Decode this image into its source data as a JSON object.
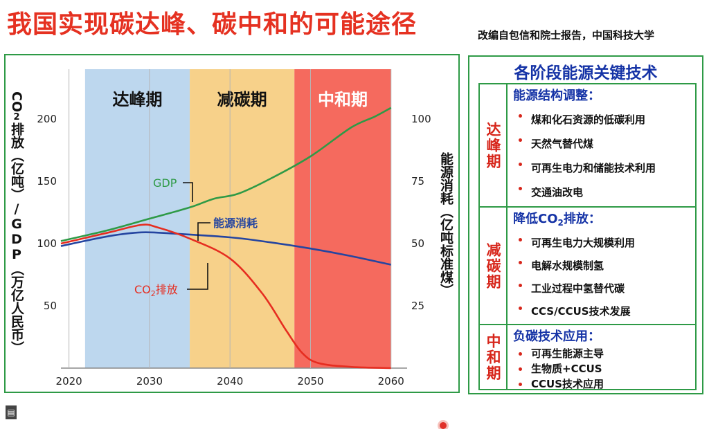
{
  "header": {
    "title": "我国实现碳达峰、碳中和的可能途径",
    "source": "改编自包信和院士报告，中国科技大学"
  },
  "chart_data": {
    "type": "line",
    "x_ticks": [
      2020,
      2030,
      2040,
      2050,
      2060
    ],
    "xlim": [
      2019,
      2062
    ],
    "left_axis": {
      "label_lines": [
        "CO",
        "2",
        "排放（亿吨）/GDP（万亿人民币）"
      ],
      "ylim": [
        0,
        240
      ],
      "ticks": [
        50,
        100,
        150,
        200
      ]
    },
    "right_axis": {
      "label": "能源消耗（亿吨标准煤）",
      "ylim": [
        0,
        120
      ],
      "ticks": [
        25,
        50,
        75,
        100
      ]
    },
    "phases": [
      {
        "name": "达峰期",
        "start": 2022,
        "end": 2035,
        "color": "#bdd7ee"
      },
      {
        "name": "减碳期",
        "start": 2035,
        "end": 2048,
        "color": "#f7d18a"
      },
      {
        "name": "中和期",
        "start": 2048,
        "end": 2060,
        "color": "#f56a5e"
      }
    ],
    "series": [
      {
        "name": "GDP",
        "label": "GDP",
        "axis": "left",
        "color": "#2e9a46",
        "x": [
          2019,
          2025,
          2030,
          2035,
          2038,
          2041,
          2045,
          2050,
          2055,
          2058,
          2060
        ],
        "values": [
          102,
          111,
          120,
          129,
          136,
          140,
          152,
          170,
          193,
          202,
          209
        ]
      },
      {
        "name": "能源消耗",
        "label": "能源消耗",
        "axis": "right",
        "color": "#2545a0",
        "x": [
          2019,
          2025,
          2029,
          2033,
          2040,
          2045,
          2050,
          2055,
          2060
        ],
        "values": [
          49,
          53,
          54.5,
          54,
          52.5,
          50.5,
          48,
          45,
          41.5
        ]
      },
      {
        "name": "CO2排放",
        "label_main": "CO",
        "label_sub": "2",
        "label_post": "排放",
        "axis": "left",
        "color": "#e62d20",
        "x": [
          2019,
          2025,
          2029,
          2031,
          2035,
          2040,
          2044,
          2047,
          2049,
          2051,
          2055,
          2060
        ],
        "values": [
          100,
          109,
          115,
          113,
          104,
          88,
          60,
          30,
          12,
          4,
          1,
          0
        ]
      }
    ]
  },
  "panel": {
    "title": "各阶段能源关键技术",
    "stages": [
      {
        "label": "达峰期",
        "heading_pre": "能源结构调整：",
        "heading_sub": "",
        "heading_post": "",
        "items": [
          "煤和化石资源的低碳利用",
          "天然气替代煤",
          "可再生电力和储能技术利用",
          "交通油改电"
        ]
      },
      {
        "label": "减碳期",
        "heading_pre": "降低CO",
        "heading_sub": "2",
        "heading_post": "排放：",
        "items": [
          "可再生电力大规模利用",
          "电解水规模制氢",
          "工业过程中氢替代碳",
          "CCS/CCUS技术发展"
        ]
      },
      {
        "label": "中和期",
        "heading_pre": "负碳技术应用：",
        "heading_sub": "",
        "heading_post": "",
        "items": [
          "可再生能源主导",
          "生物质+CCUS",
          "CCUS技术应用"
        ]
      }
    ]
  },
  "colors": {
    "title_red": "#e53121",
    "frame_green": "#2e9a46",
    "panel_blue": "#1533a6",
    "stage_red": "#d7261b"
  }
}
